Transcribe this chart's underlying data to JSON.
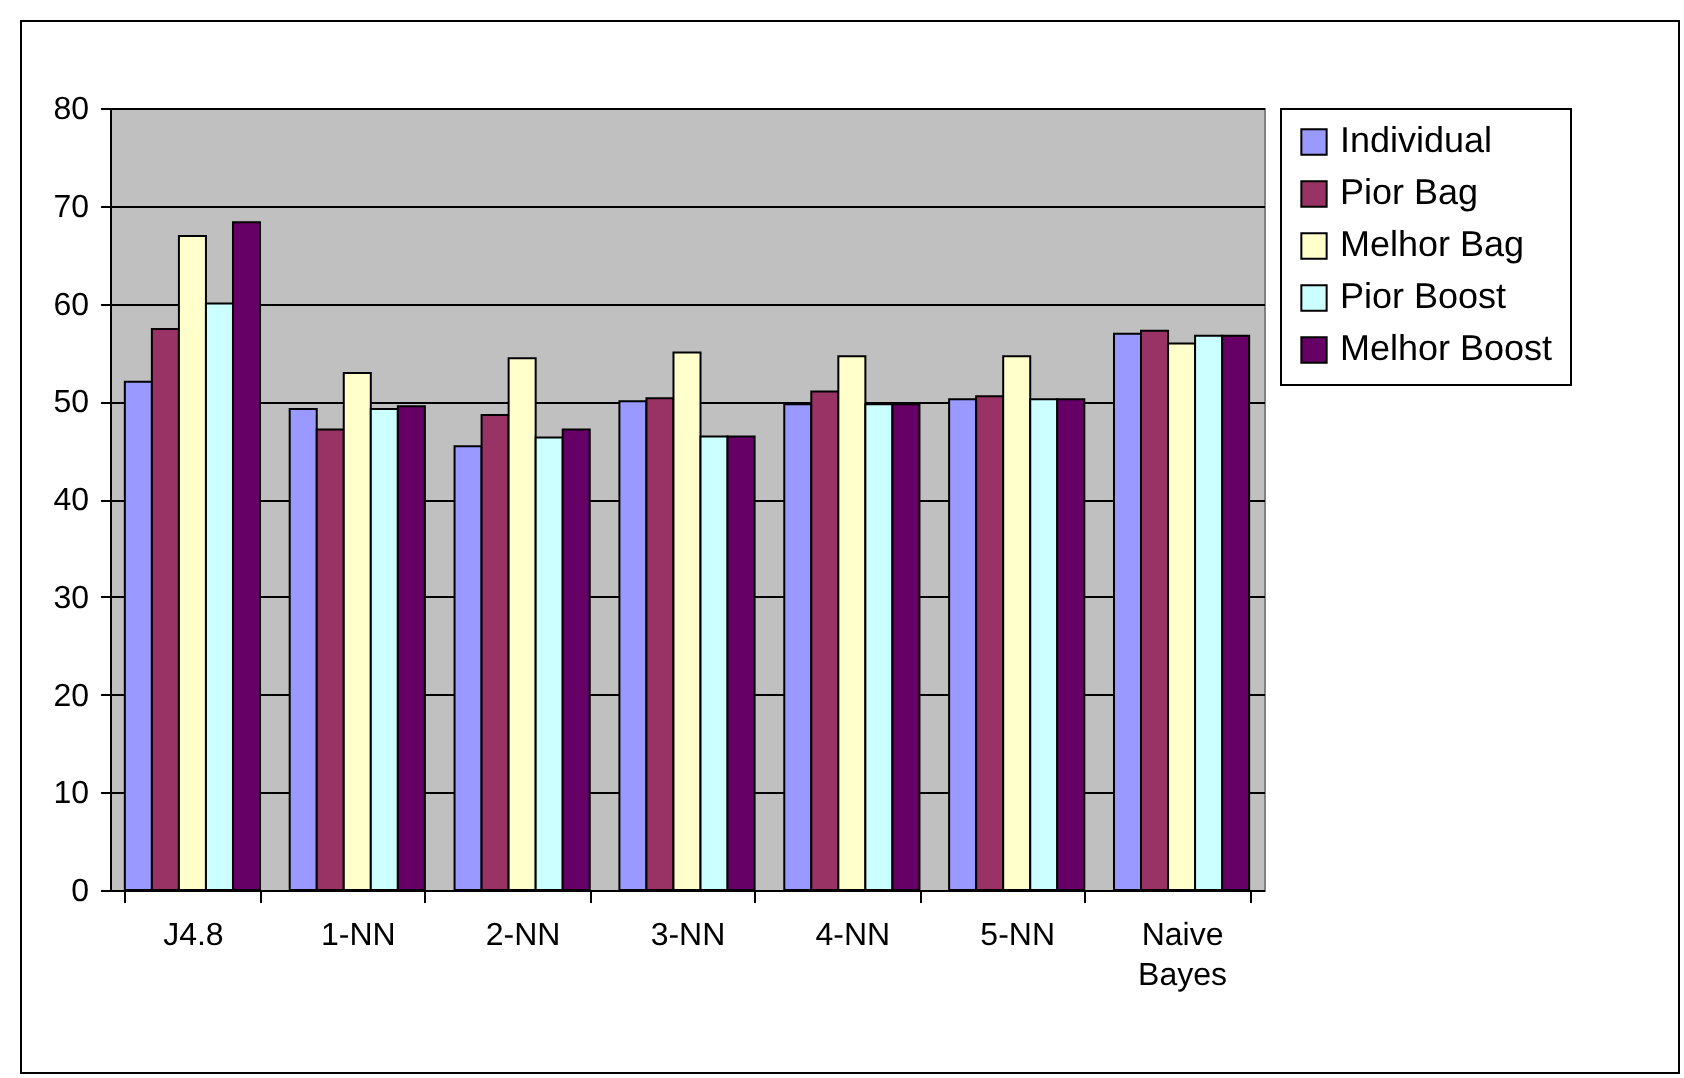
{
  "chart_data": {
    "type": "bar",
    "categories": [
      "J4.8",
      "1-NN",
      "2-NN",
      "3-NN",
      "4-NN",
      "5-NN",
      "Naive Bayes"
    ],
    "series": [
      {
        "name": "Individual",
        "color": "#9999ff",
        "values": [
          52.0,
          49.2,
          45.4,
          50.0,
          49.7,
          50.2,
          56.9
        ]
      },
      {
        "name": "Pior Bag",
        "color": "#993366",
        "values": [
          57.4,
          47.1,
          48.6,
          50.3,
          51.0,
          50.5,
          57.2
        ]
      },
      {
        "name": "Melhor Bag",
        "color": "#ffffcc",
        "values": [
          66.9,
          52.9,
          54.4,
          55.0,
          54.6,
          54.6,
          55.9
        ]
      },
      {
        "name": "Pior Boost",
        "color": "#ccffff",
        "values": [
          60.0,
          49.2,
          46.3,
          46.4,
          49.7,
          50.2,
          56.7
        ]
      },
      {
        "name": "Melhor Boost",
        "color": "#660066",
        "values": [
          68.3,
          49.5,
          47.1,
          46.4,
          49.7,
          50.2,
          56.7
        ]
      }
    ],
    "ylim": [
      0,
      80
    ],
    "yticks": [
      0,
      10,
      20,
      30,
      40,
      50,
      60,
      70,
      80
    ],
    "grid": "y",
    "legend": "right"
  }
}
